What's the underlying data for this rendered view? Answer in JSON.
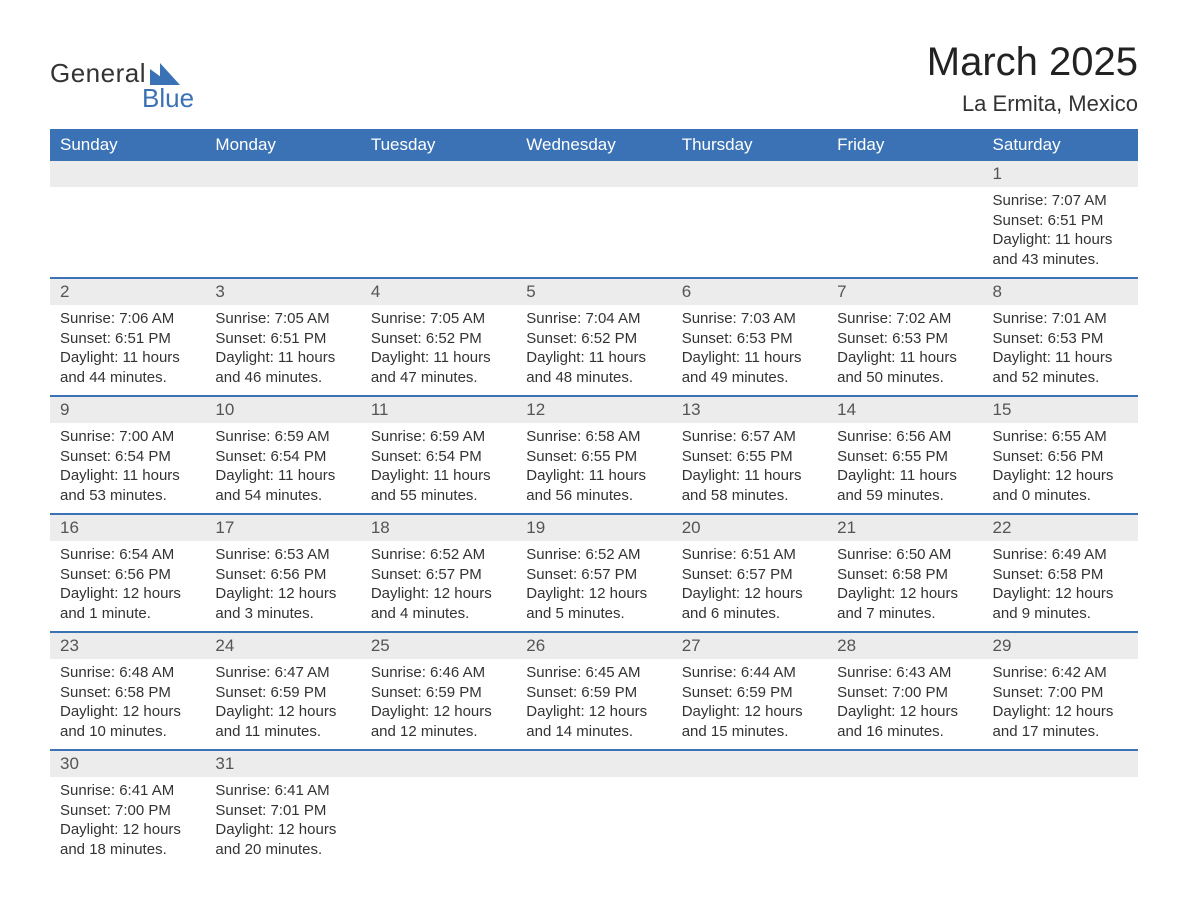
{
  "branding": {
    "logo_top": "General",
    "logo_bottom": "Blue",
    "logo_color": "#3a72b5"
  },
  "header": {
    "title": "March 2025",
    "location": "La Ermita, Mexico"
  },
  "styling": {
    "header_bg": "#3a72b5",
    "header_text": "#ffffff",
    "daynum_bg": "#ececec",
    "row_divider": "#3a72b5",
    "body_text": "#333333",
    "title_fontsize": 40,
    "location_fontsize": 22,
    "dayheader_fontsize": 17,
    "cell_fontsize": 15
  },
  "day_headers": [
    "Sunday",
    "Monday",
    "Tuesday",
    "Wednesday",
    "Thursday",
    "Friday",
    "Saturday"
  ],
  "weeks": [
    [
      null,
      null,
      null,
      null,
      null,
      null,
      {
        "n": "1",
        "sunrise": "Sunrise: 7:07 AM",
        "sunset": "Sunset: 6:51 PM",
        "dl1": "Daylight: 11 hours",
        "dl2": "and 43 minutes."
      }
    ],
    [
      {
        "n": "2",
        "sunrise": "Sunrise: 7:06 AM",
        "sunset": "Sunset: 6:51 PM",
        "dl1": "Daylight: 11 hours",
        "dl2": "and 44 minutes."
      },
      {
        "n": "3",
        "sunrise": "Sunrise: 7:05 AM",
        "sunset": "Sunset: 6:51 PM",
        "dl1": "Daylight: 11 hours",
        "dl2": "and 46 minutes."
      },
      {
        "n": "4",
        "sunrise": "Sunrise: 7:05 AM",
        "sunset": "Sunset: 6:52 PM",
        "dl1": "Daylight: 11 hours",
        "dl2": "and 47 minutes."
      },
      {
        "n": "5",
        "sunrise": "Sunrise: 7:04 AM",
        "sunset": "Sunset: 6:52 PM",
        "dl1": "Daylight: 11 hours",
        "dl2": "and 48 minutes."
      },
      {
        "n": "6",
        "sunrise": "Sunrise: 7:03 AM",
        "sunset": "Sunset: 6:53 PM",
        "dl1": "Daylight: 11 hours",
        "dl2": "and 49 minutes."
      },
      {
        "n": "7",
        "sunrise": "Sunrise: 7:02 AM",
        "sunset": "Sunset: 6:53 PM",
        "dl1": "Daylight: 11 hours",
        "dl2": "and 50 minutes."
      },
      {
        "n": "8",
        "sunrise": "Sunrise: 7:01 AM",
        "sunset": "Sunset: 6:53 PM",
        "dl1": "Daylight: 11 hours",
        "dl2": "and 52 minutes."
      }
    ],
    [
      {
        "n": "9",
        "sunrise": "Sunrise: 7:00 AM",
        "sunset": "Sunset: 6:54 PM",
        "dl1": "Daylight: 11 hours",
        "dl2": "and 53 minutes."
      },
      {
        "n": "10",
        "sunrise": "Sunrise: 6:59 AM",
        "sunset": "Sunset: 6:54 PM",
        "dl1": "Daylight: 11 hours",
        "dl2": "and 54 minutes."
      },
      {
        "n": "11",
        "sunrise": "Sunrise: 6:59 AM",
        "sunset": "Sunset: 6:54 PM",
        "dl1": "Daylight: 11 hours",
        "dl2": "and 55 minutes."
      },
      {
        "n": "12",
        "sunrise": "Sunrise: 6:58 AM",
        "sunset": "Sunset: 6:55 PM",
        "dl1": "Daylight: 11 hours",
        "dl2": "and 56 minutes."
      },
      {
        "n": "13",
        "sunrise": "Sunrise: 6:57 AM",
        "sunset": "Sunset: 6:55 PM",
        "dl1": "Daylight: 11 hours",
        "dl2": "and 58 minutes."
      },
      {
        "n": "14",
        "sunrise": "Sunrise: 6:56 AM",
        "sunset": "Sunset: 6:55 PM",
        "dl1": "Daylight: 11 hours",
        "dl2": "and 59 minutes."
      },
      {
        "n": "15",
        "sunrise": "Sunrise: 6:55 AM",
        "sunset": "Sunset: 6:56 PM",
        "dl1": "Daylight: 12 hours",
        "dl2": "and 0 minutes."
      }
    ],
    [
      {
        "n": "16",
        "sunrise": "Sunrise: 6:54 AM",
        "sunset": "Sunset: 6:56 PM",
        "dl1": "Daylight: 12 hours",
        "dl2": "and 1 minute."
      },
      {
        "n": "17",
        "sunrise": "Sunrise: 6:53 AM",
        "sunset": "Sunset: 6:56 PM",
        "dl1": "Daylight: 12 hours",
        "dl2": "and 3 minutes."
      },
      {
        "n": "18",
        "sunrise": "Sunrise: 6:52 AM",
        "sunset": "Sunset: 6:57 PM",
        "dl1": "Daylight: 12 hours",
        "dl2": "and 4 minutes."
      },
      {
        "n": "19",
        "sunrise": "Sunrise: 6:52 AM",
        "sunset": "Sunset: 6:57 PM",
        "dl1": "Daylight: 12 hours",
        "dl2": "and 5 minutes."
      },
      {
        "n": "20",
        "sunrise": "Sunrise: 6:51 AM",
        "sunset": "Sunset: 6:57 PM",
        "dl1": "Daylight: 12 hours",
        "dl2": "and 6 minutes."
      },
      {
        "n": "21",
        "sunrise": "Sunrise: 6:50 AM",
        "sunset": "Sunset: 6:58 PM",
        "dl1": "Daylight: 12 hours",
        "dl2": "and 7 minutes."
      },
      {
        "n": "22",
        "sunrise": "Sunrise: 6:49 AM",
        "sunset": "Sunset: 6:58 PM",
        "dl1": "Daylight: 12 hours",
        "dl2": "and 9 minutes."
      }
    ],
    [
      {
        "n": "23",
        "sunrise": "Sunrise: 6:48 AM",
        "sunset": "Sunset: 6:58 PM",
        "dl1": "Daylight: 12 hours",
        "dl2": "and 10 minutes."
      },
      {
        "n": "24",
        "sunrise": "Sunrise: 6:47 AM",
        "sunset": "Sunset: 6:59 PM",
        "dl1": "Daylight: 12 hours",
        "dl2": "and 11 minutes."
      },
      {
        "n": "25",
        "sunrise": "Sunrise: 6:46 AM",
        "sunset": "Sunset: 6:59 PM",
        "dl1": "Daylight: 12 hours",
        "dl2": "and 12 minutes."
      },
      {
        "n": "26",
        "sunrise": "Sunrise: 6:45 AM",
        "sunset": "Sunset: 6:59 PM",
        "dl1": "Daylight: 12 hours",
        "dl2": "and 14 minutes."
      },
      {
        "n": "27",
        "sunrise": "Sunrise: 6:44 AM",
        "sunset": "Sunset: 6:59 PM",
        "dl1": "Daylight: 12 hours",
        "dl2": "and 15 minutes."
      },
      {
        "n": "28",
        "sunrise": "Sunrise: 6:43 AM",
        "sunset": "Sunset: 7:00 PM",
        "dl1": "Daylight: 12 hours",
        "dl2": "and 16 minutes."
      },
      {
        "n": "29",
        "sunrise": "Sunrise: 6:42 AM",
        "sunset": "Sunset: 7:00 PM",
        "dl1": "Daylight: 12 hours",
        "dl2": "and 17 minutes."
      }
    ],
    [
      {
        "n": "30",
        "sunrise": "Sunrise: 6:41 AM",
        "sunset": "Sunset: 7:00 PM",
        "dl1": "Daylight: 12 hours",
        "dl2": "and 18 minutes."
      },
      {
        "n": "31",
        "sunrise": "Sunrise: 6:41 AM",
        "sunset": "Sunset: 7:01 PM",
        "dl1": "Daylight: 12 hours",
        "dl2": "and 20 minutes."
      },
      null,
      null,
      null,
      null,
      null
    ]
  ]
}
